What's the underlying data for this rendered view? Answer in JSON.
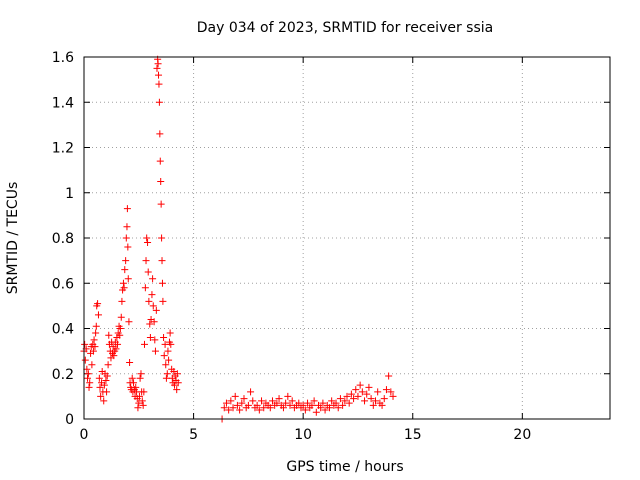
{
  "chart_data": {
    "type": "scatter",
    "title": "Day 034 of 2023, SRMTID for receiver ssia",
    "xlabel": "GPS time / hours",
    "ylabel": "SRMTID / TECUs",
    "xlim": [
      0,
      24
    ],
    "ylim": [
      0,
      1.6
    ],
    "x_ticks": [
      0,
      5,
      10,
      15,
      20
    ],
    "x_tick_labels": [
      "0",
      "5",
      "10",
      "15",
      "20"
    ],
    "y_ticks": [
      0,
      0.2,
      0.4,
      0.6,
      0.8,
      1.0,
      1.2,
      1.4,
      1.6
    ],
    "y_tick_labels": [
      "0",
      "0.2",
      "0.4",
      "0.6",
      "0.8",
      "1",
      "1.2",
      "1.4",
      "1.6"
    ],
    "grid": true,
    "marker": "+",
    "series": [
      {
        "name": "SRMTID",
        "color": "#ff0000",
        "points": [
          [
            0.0,
            0.3
          ],
          [
            0.03,
            0.33
          ],
          [
            0.06,
            0.26
          ],
          [
            0.1,
            0.31
          ],
          [
            0.13,
            0.22
          ],
          [
            0.16,
            0.18
          ],
          [
            0.2,
            0.2
          ],
          [
            0.23,
            0.14
          ],
          [
            0.26,
            0.16
          ],
          [
            0.3,
            0.29
          ],
          [
            0.33,
            0.32
          ],
          [
            0.36,
            0.24
          ],
          [
            0.4,
            0.33
          ],
          [
            0.43,
            0.3
          ],
          [
            0.46,
            0.35
          ],
          [
            0.5,
            0.32
          ],
          [
            0.53,
            0.38
          ],
          [
            0.56,
            0.41
          ],
          [
            0.58,
            0.5
          ],
          [
            0.62,
            0.51
          ],
          [
            0.66,
            0.46
          ],
          [
            0.7,
            0.18
          ],
          [
            0.73,
            0.14
          ],
          [
            0.76,
            0.1
          ],
          [
            0.8,
            0.16
          ],
          [
            0.83,
            0.21
          ],
          [
            0.86,
            0.12
          ],
          [
            0.9,
            0.08
          ],
          [
            0.93,
            0.15
          ],
          [
            0.96,
            0.2
          ],
          [
            1.0,
            0.17
          ],
          [
            1.03,
            0.12
          ],
          [
            1.06,
            0.19
          ],
          [
            1.1,
            0.24
          ],
          [
            1.13,
            0.37
          ],
          [
            1.16,
            0.33
          ],
          [
            1.2,
            0.3
          ],
          [
            1.23,
            0.27
          ],
          [
            1.26,
            0.34
          ],
          [
            1.3,
            0.29
          ],
          [
            1.33,
            0.32
          ],
          [
            1.36,
            0.28
          ],
          [
            1.4,
            0.3
          ],
          [
            1.43,
            0.34
          ],
          [
            1.46,
            0.31
          ],
          [
            1.5,
            0.36
          ],
          [
            1.53,
            0.33
          ],
          [
            1.56,
            0.38
          ],
          [
            1.6,
            0.41
          ],
          [
            1.63,
            0.37
          ],
          [
            1.66,
            0.4
          ],
          [
            1.7,
            0.45
          ],
          [
            1.73,
            0.52
          ],
          [
            1.76,
            0.57
          ],
          [
            1.8,
            0.6
          ],
          [
            1.83,
            0.58
          ],
          [
            1.86,
            0.66
          ],
          [
            1.9,
            0.7
          ],
          [
            1.93,
            0.8
          ],
          [
            1.96,
            0.85
          ],
          [
            1.98,
            0.93
          ],
          [
            2.0,
            0.76
          ],
          [
            2.02,
            0.62
          ],
          [
            2.05,
            0.43
          ],
          [
            2.08,
            0.25
          ],
          [
            2.1,
            0.16
          ],
          [
            2.13,
            0.14
          ],
          [
            2.16,
            0.13
          ],
          [
            2.2,
            0.18
          ],
          [
            2.23,
            0.12
          ],
          [
            2.26,
            0.16
          ],
          [
            2.3,
            0.13
          ],
          [
            2.33,
            0.1
          ],
          [
            2.36,
            0.14
          ],
          [
            2.4,
            0.12
          ],
          [
            2.43,
            0.09
          ],
          [
            2.46,
            0.05
          ],
          [
            2.5,
            0.07
          ],
          [
            2.53,
            0.1
          ],
          [
            2.56,
            0.18
          ],
          [
            2.6,
            0.2
          ],
          [
            2.63,
            0.12
          ],
          [
            2.66,
            0.08
          ],
          [
            2.7,
            0.06
          ],
          [
            2.73,
            0.12
          ],
          [
            2.76,
            0.33
          ],
          [
            2.8,
            0.58
          ],
          [
            2.83,
            0.7
          ],
          [
            2.86,
            0.8
          ],
          [
            2.9,
            0.78
          ],
          [
            2.93,
            0.65
          ],
          [
            2.96,
            0.52
          ],
          [
            3.0,
            0.42
          ],
          [
            3.03,
            0.36
          ],
          [
            3.06,
            0.44
          ],
          [
            3.1,
            0.55
          ],
          [
            3.13,
            0.62
          ],
          [
            3.16,
            0.5
          ],
          [
            3.2,
            0.43
          ],
          [
            3.23,
            0.35
          ],
          [
            3.26,
            0.3
          ],
          [
            3.3,
            0.48
          ],
          [
            3.33,
            1.55
          ],
          [
            3.36,
            1.59
          ],
          [
            3.38,
            1.57
          ],
          [
            3.4,
            1.52
          ],
          [
            3.42,
            1.48
          ],
          [
            3.44,
            1.4
          ],
          [
            3.46,
            1.26
          ],
          [
            3.48,
            1.14
          ],
          [
            3.5,
            1.05
          ],
          [
            3.52,
            0.95
          ],
          [
            3.54,
            0.8
          ],
          [
            3.56,
            0.7
          ],
          [
            3.58,
            0.6
          ],
          [
            3.6,
            0.52
          ],
          [
            3.63,
            0.36
          ],
          [
            3.66,
            0.28
          ],
          [
            3.7,
            0.33
          ],
          [
            3.73,
            0.24
          ],
          [
            3.76,
            0.18
          ],
          [
            3.8,
            0.2
          ],
          [
            3.83,
            0.3
          ],
          [
            3.86,
            0.26
          ],
          [
            3.9,
            0.34
          ],
          [
            3.93,
            0.38
          ],
          [
            3.96,
            0.33
          ],
          [
            4.0,
            0.22
          ],
          [
            4.03,
            0.18
          ],
          [
            4.06,
            0.16
          ],
          [
            4.1,
            0.21
          ],
          [
            4.13,
            0.15
          ],
          [
            4.16,
            0.19
          ],
          [
            4.2,
            0.17
          ],
          [
            4.23,
            0.13
          ],
          [
            4.26,
            0.2
          ],
          [
            4.3,
            0.16
          ],
          [
            6.3,
            0.0
          ],
          [
            6.4,
            0.05
          ],
          [
            6.5,
            0.07
          ],
          [
            6.6,
            0.04
          ],
          [
            6.7,
            0.08
          ],
          [
            6.8,
            0.05
          ],
          [
            6.9,
            0.1
          ],
          [
            7.0,
            0.06
          ],
          [
            7.1,
            0.04
          ],
          [
            7.2,
            0.07
          ],
          [
            7.3,
            0.09
          ],
          [
            7.4,
            0.05
          ],
          [
            7.5,
            0.06
          ],
          [
            7.6,
            0.12
          ],
          [
            7.7,
            0.08
          ],
          [
            7.8,
            0.05
          ],
          [
            7.9,
            0.06
          ],
          [
            8.0,
            0.04
          ],
          [
            8.1,
            0.08
          ],
          [
            8.2,
            0.05
          ],
          [
            8.3,
            0.07
          ],
          [
            8.4,
            0.06
          ],
          [
            8.5,
            0.05
          ],
          [
            8.6,
            0.08
          ],
          [
            8.7,
            0.06
          ],
          [
            8.8,
            0.07
          ],
          [
            8.9,
            0.09
          ],
          [
            9.0,
            0.06
          ],
          [
            9.1,
            0.05
          ],
          [
            9.2,
            0.07
          ],
          [
            9.3,
            0.1
          ],
          [
            9.4,
            0.06
          ],
          [
            9.5,
            0.08
          ],
          [
            9.6,
            0.05
          ],
          [
            9.7,
            0.06
          ],
          [
            9.8,
            0.07
          ],
          [
            9.9,
            0.05
          ],
          [
            10.0,
            0.06
          ],
          [
            10.1,
            0.04
          ],
          [
            10.2,
            0.07
          ],
          [
            10.3,
            0.05
          ],
          [
            10.4,
            0.06
          ],
          [
            10.5,
            0.08
          ],
          [
            10.6,
            0.03
          ],
          [
            10.7,
            0.06
          ],
          [
            10.8,
            0.05
          ],
          [
            10.9,
            0.07
          ],
          [
            11.0,
            0.04
          ],
          [
            11.1,
            0.06
          ],
          [
            11.2,
            0.05
          ],
          [
            11.3,
            0.08
          ],
          [
            11.4,
            0.06
          ],
          [
            11.5,
            0.07
          ],
          [
            11.6,
            0.05
          ],
          [
            11.7,
            0.09
          ],
          [
            11.8,
            0.06
          ],
          [
            11.9,
            0.08
          ],
          [
            12.0,
            0.1
          ],
          [
            12.1,
            0.07
          ],
          [
            12.2,
            0.11
          ],
          [
            12.3,
            0.09
          ],
          [
            12.4,
            0.13
          ],
          [
            12.5,
            0.1
          ],
          [
            12.6,
            0.15
          ],
          [
            12.7,
            0.12
          ],
          [
            12.8,
            0.08
          ],
          [
            12.9,
            0.11
          ],
          [
            13.0,
            0.14
          ],
          [
            13.1,
            0.09
          ],
          [
            13.2,
            0.06
          ],
          [
            13.3,
            0.08
          ],
          [
            13.4,
            0.12
          ],
          [
            13.5,
            0.07
          ],
          [
            13.6,
            0.06
          ],
          [
            13.7,
            0.09
          ],
          [
            13.8,
            0.13
          ],
          [
            13.9,
            0.19
          ],
          [
            14.0,
            0.12
          ],
          [
            14.1,
            0.1
          ]
        ]
      }
    ]
  }
}
